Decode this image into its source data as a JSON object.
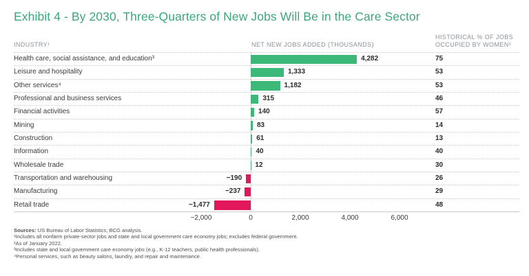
{
  "chart_data": {
    "type": "bar",
    "orientation": "horizontal",
    "title": "Exhibit 4 - By 2030, Three-Quarters of New Jobs Will Be in the Care Sector",
    "categories": [
      "Health care, social assistance, and education³",
      "Leisure and hospitality",
      "Other services⁴",
      "Professional and business services",
      "Financial activities",
      "Mining",
      "Construction",
      "Information",
      "Wholesale trade",
      "Transportation and warehousing",
      "Manufacturing",
      "Retail trade"
    ],
    "series": [
      {
        "name": "NET NEW JOBS ADDED (THOUSANDS)",
        "values": [
          4282,
          1333,
          1182,
          315,
          140,
          83,
          61,
          40,
          12,
          -190,
          -237,
          -1477
        ],
        "value_labels": [
          "4,282",
          "1,333",
          "1,182",
          "315",
          "140",
          "83",
          "61",
          "40",
          "12",
          "−190",
          "−237",
          "−1,477"
        ]
      },
      {
        "name": "HISTORICAL % OF JOBS OCCUPIED BY WOMEN²",
        "values": [
          75,
          53,
          53,
          46,
          57,
          14,
          13,
          40,
          30,
          26,
          29,
          48
        ]
      }
    ],
    "x_axis": {
      "tick_values": [
        -2000,
        0,
        2000,
        4000,
        6000
      ],
      "tick_labels": [
        "−2,000",
        "0",
        "2,000",
        "4,000",
        "6,000"
      ],
      "range": [
        -2200,
        7800
      ]
    },
    "colors": {
      "positive_bar": "#3CB878",
      "negative_bar": "#E3185C",
      "title": "#3DA77C"
    },
    "layout": {
      "legend": "none",
      "row_separators": "dotted",
      "zero_line": true
    }
  },
  "table_headers": {
    "industry": "INDUSTRY¹",
    "jobs": "NET NEW JOBS ADDED (THOUSANDS)",
    "women_line1": "HISTORICAL % OF JOBS",
    "women_line2": "OCCUPIED BY WOMEN²"
  },
  "footnotes": {
    "sources_label": "Sources:",
    "sources_text": " US Bureau of Labor Statistics; BCG analysis.",
    "notes": [
      "¹Includes all nonfarm private-sector jobs and state and local government care economy jobs; excludes federal government.",
      "²As of January 2022.",
      "³Includes state and local government care economy jobs (e.g., K-12 teachers, public health professionals).",
      "⁴Personal services, such as beauty salons, laundry, and repair and maintenance."
    ]
  }
}
